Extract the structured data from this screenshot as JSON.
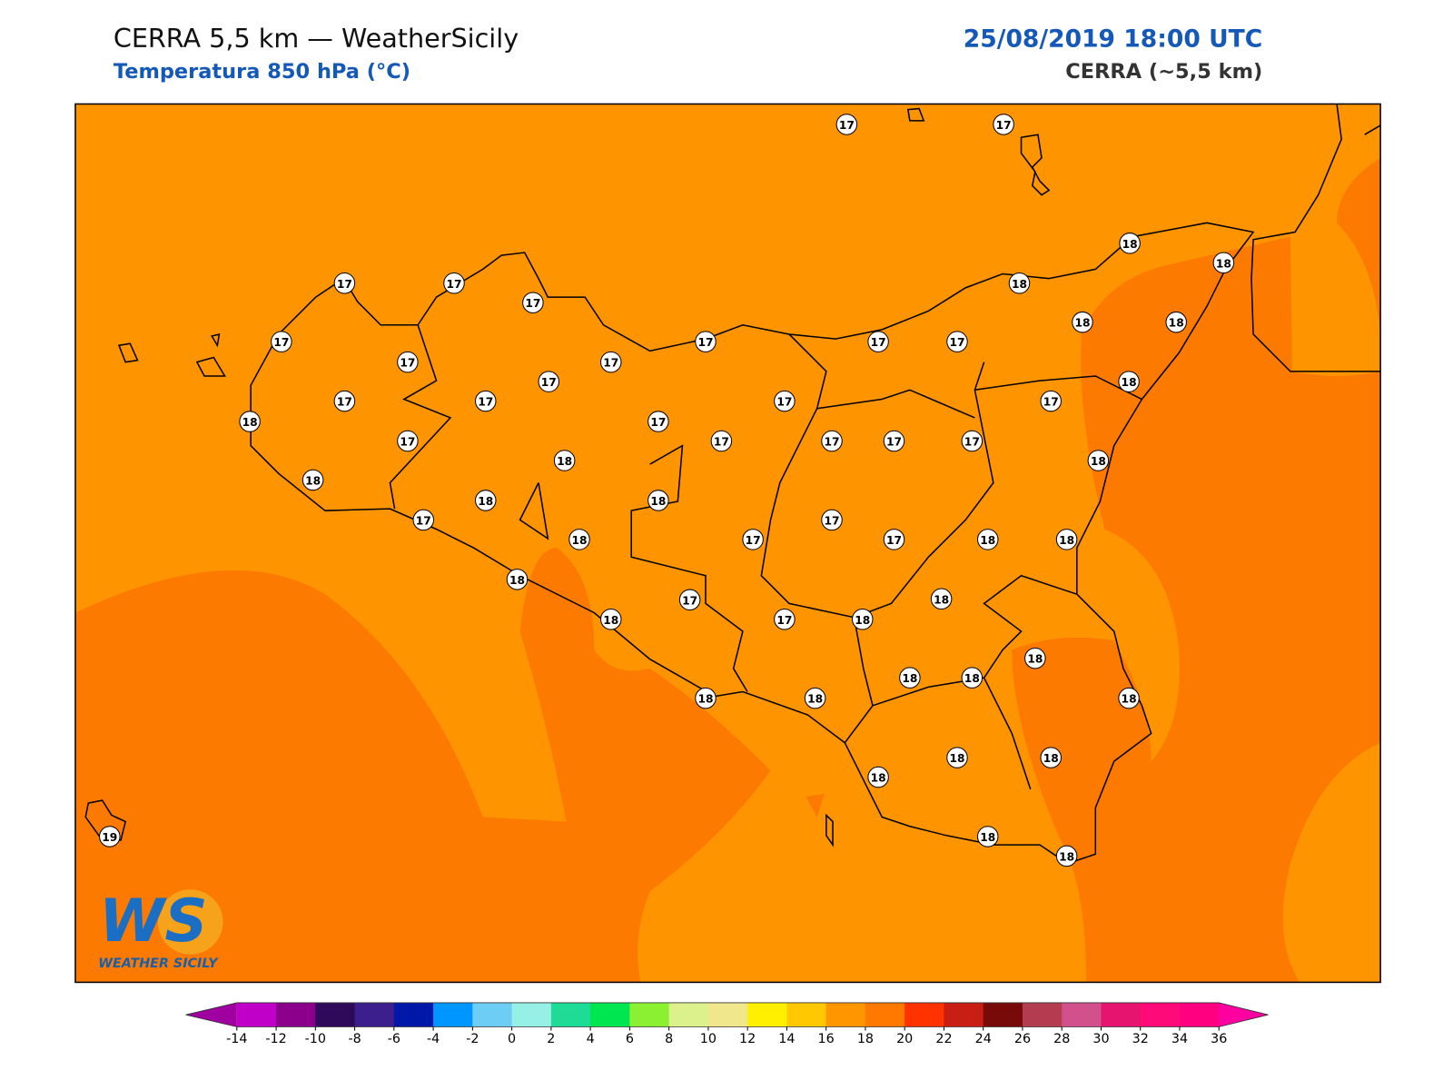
{
  "header": {
    "title": "CERRA 5,5 km — WeatherSicily",
    "subtitle": "Temperatura 850 hPa (°C)",
    "datetime": "25/08/2019 18:00 UTC",
    "model": "CERRA (~5,5 km)"
  },
  "logo": {
    "mark": "WS",
    "name": "WEATHER SICILY"
  },
  "stations": {
    "values": [
      17,
      17,
      18,
      18,
      17,
      17,
      17,
      18,
      18,
      18,
      17,
      17,
      17,
      17,
      17,
      17,
      17,
      18,
      17,
      17,
      17,
      17,
      18,
      17,
      17,
      17,
      17,
      17,
      17,
      18,
      18,
      18,
      18,
      18,
      17,
      17,
      18,
      17,
      17,
      18,
      18,
      18,
      18,
      17,
      18,
      17,
      18,
      18,
      18,
      18,
      18,
      18,
      18,
      18,
      18,
      18,
      18,
      18,
      19
    ]
  },
  "colorbar": {
    "ticks": [
      -14,
      -12,
      -10,
      -8,
      -6,
      -4,
      -2,
      0,
      2,
      4,
      6,
      8,
      10,
      12,
      14,
      16,
      18,
      20,
      22,
      24,
      26,
      28,
      30,
      32,
      34,
      36
    ],
    "colors": [
      "#c000c8",
      "#8b008b",
      "#2f0a5a",
      "#3c1e8c",
      "#0018a8",
      "#0096ff",
      "#6ecdf5",
      "#96f0e6",
      "#1edc96",
      "#00e650",
      "#8cf032",
      "#dcf08c",
      "#f0e68c",
      "#fff000",
      "#ffc800",
      "#ff9600",
      "#ff7800",
      "#ff3200",
      "#c81e14",
      "#780a0a",
      "#b43c50",
      "#d2508c",
      "#e6146e",
      "#ff0a78",
      "#ff0080"
    ],
    "under": "#a000a0",
    "over": "#ff00a0"
  },
  "map": {
    "base_color": "#fd9400",
    "warm_color": "#fd7a00"
  }
}
